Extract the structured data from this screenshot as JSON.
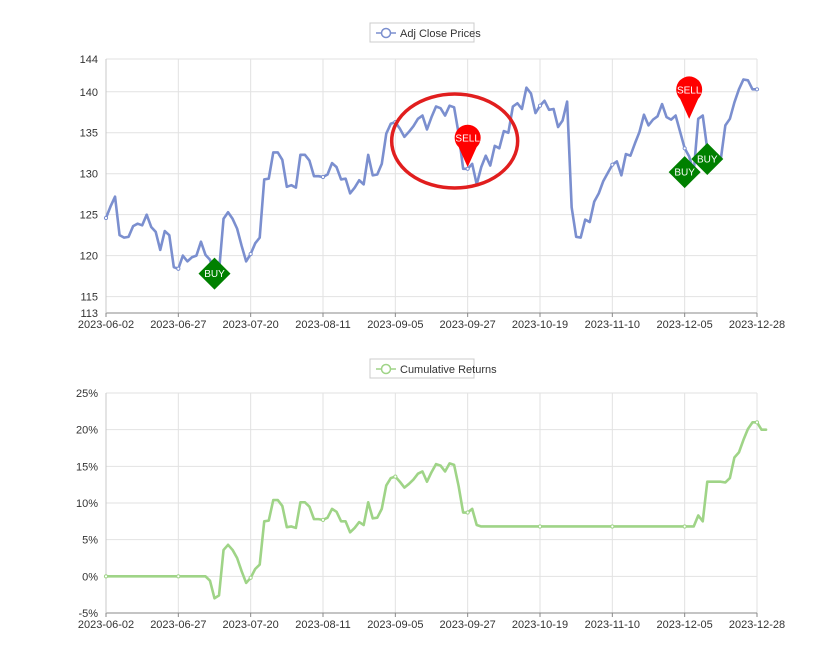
{
  "chart_data": [
    {
      "type": "line",
      "legend": "Adj Close Prices",
      "legend_position": "top-center",
      "color": "#7b8fcf",
      "grid": true,
      "x": [
        "2023-06-02",
        "2023-06-05",
        "2023-06-06",
        "2023-06-07",
        "2023-06-08",
        "2023-06-09",
        "2023-06-12",
        "2023-06-13",
        "2023-06-14",
        "2023-06-15",
        "2023-06-16",
        "2023-06-20",
        "2023-06-21",
        "2023-06-22",
        "2023-06-23",
        "2023-06-26",
        "2023-06-27",
        "2023-06-28",
        "2023-06-29",
        "2023-06-30",
        "2023-07-03",
        "2023-07-05",
        "2023-07-06",
        "2023-07-07",
        "2023-07-10",
        "2023-07-11",
        "2023-07-12",
        "2023-07-13",
        "2023-07-14",
        "2023-07-17",
        "2023-07-18",
        "2023-07-19",
        "2023-07-20",
        "2023-07-21",
        "2023-07-24",
        "2023-07-25",
        "2023-07-26",
        "2023-07-27",
        "2023-07-28",
        "2023-07-31",
        "2023-08-01",
        "2023-08-02",
        "2023-08-03",
        "2023-08-04",
        "2023-08-07",
        "2023-08-08",
        "2023-08-09",
        "2023-08-10",
        "2023-08-11",
        "2023-08-14",
        "2023-08-15",
        "2023-08-16",
        "2023-08-17",
        "2023-08-18",
        "2023-08-21",
        "2023-08-22",
        "2023-08-23",
        "2023-08-24",
        "2023-08-25",
        "2023-08-28",
        "2023-08-29",
        "2023-08-30",
        "2023-08-31",
        "2023-09-01",
        "2023-09-05",
        "2023-09-06",
        "2023-09-07",
        "2023-09-08",
        "2023-09-11",
        "2023-09-12",
        "2023-09-13",
        "2023-09-14",
        "2023-09-15",
        "2023-09-18",
        "2023-09-19",
        "2023-09-20",
        "2023-09-21",
        "2023-09-22",
        "2023-09-25",
        "2023-09-26",
        "2023-09-27",
        "2023-09-28",
        "2023-09-29",
        "2023-10-02",
        "2023-10-03",
        "2023-10-04",
        "2023-10-05",
        "2023-10-06",
        "2023-10-09",
        "2023-10-10",
        "2023-10-11",
        "2023-10-12",
        "2023-10-13",
        "2023-10-16",
        "2023-10-17",
        "2023-10-18",
        "2023-10-19",
        "2023-10-20",
        "2023-10-23",
        "2023-10-24",
        "2023-10-25",
        "2023-10-26",
        "2023-10-27",
        "2023-10-30",
        "2023-10-31",
        "2023-11-01",
        "2023-11-02",
        "2023-11-03",
        "2023-11-06",
        "2023-11-07",
        "2023-11-08",
        "2023-11-09",
        "2023-11-10",
        "2023-11-13",
        "2023-11-14",
        "2023-11-15",
        "2023-11-16",
        "2023-11-17",
        "2023-11-20",
        "2023-11-21",
        "2023-11-22",
        "2023-11-24",
        "2023-11-27",
        "2023-11-28",
        "2023-11-29",
        "2023-11-30",
        "2023-12-01",
        "2023-12-04",
        "2023-12-05",
        "2023-12-06",
        "2023-12-07",
        "2023-12-08",
        "2023-12-11",
        "2023-12-12",
        "2023-12-13",
        "2023-12-14",
        "2023-12-15",
        "2023-12-18",
        "2023-12-19",
        "2023-12-20",
        "2023-12-21",
        "2023-12-22",
        "2023-12-26",
        "2023-12-27",
        "2023-12-28"
      ],
      "x_ticks": [
        "2023-06-02",
        "2023-06-27",
        "2023-07-20",
        "2023-08-11",
        "2023-09-05",
        "2023-09-27",
        "2023-10-19",
        "2023-11-10",
        "2023-12-05",
        "2023-12-28"
      ],
      "y_ticks": [
        113,
        115,
        120,
        125,
        130,
        135,
        140,
        144
      ],
      "ylim": [
        113,
        144
      ],
      "values": [
        124.6,
        126.0,
        127.2,
        122.5,
        122.2,
        122.3,
        123.6,
        123.9,
        123.7,
        125.0,
        123.5,
        122.9,
        120.7,
        123.0,
        122.5,
        118.6,
        118.4,
        120.0,
        119.3,
        119.8,
        120.0,
        121.7,
        120.1,
        119.5,
        117.8,
        118.1,
        124.5,
        125.3,
        124.5,
        123.3,
        121.2,
        119.3,
        120.2,
        121.5,
        122.2,
        129.3,
        129.4,
        132.6,
        132.6,
        131.7,
        128.4,
        128.6,
        128.3,
        132.3,
        132.3,
        131.6,
        129.7,
        129.7,
        129.6,
        129.9,
        131.3,
        130.8,
        129.3,
        129.4,
        127.6,
        128.3,
        129.2,
        128.7,
        132.3,
        129.8,
        129.9,
        131.2,
        134.9,
        136.1,
        136.3,
        135.5,
        134.5,
        135.1,
        135.8,
        136.7,
        137.1,
        135.4,
        136.9,
        138.2,
        138.0,
        137.1,
        138.3,
        138.1,
        134.9,
        130.6,
        130.6,
        131.2,
        128.7,
        130.8,
        132.2,
        131.0,
        133.4,
        133.1,
        135.2,
        135.0,
        138.2,
        138.6,
        137.9,
        140.5,
        139.8,
        137.4,
        138.3,
        138.9,
        137.8,
        137.9,
        135.7,
        136.5,
        138.8,
        125.9,
        122.3,
        122.2,
        124.4,
        124.1,
        126.6,
        127.6,
        129.1,
        130.1,
        131.1,
        131.5,
        129.8,
        132.4,
        132.2,
        133.7,
        135.1,
        137.2,
        135.9,
        136.6,
        137.0,
        138.5,
        136.9,
        136.6,
        137.1,
        135.1,
        133.1,
        132.1,
        130.2,
        136.7,
        137.1,
        133.0,
        132.3,
        132.3,
        131.8,
        135.9,
        136.7,
        138.7,
        140.3,
        141.5,
        141.4,
        140.3,
        140.3
      ],
      "annotations": [
        {
          "type": "BUY",
          "x": "2023-07-10",
          "y": 117.8,
          "color": "#008000"
        },
        {
          "type": "SELL",
          "x": "2023-09-27",
          "y": 130.8,
          "color": "#ff0000"
        },
        {
          "type": "BUY",
          "x": "2023-12-05",
          "y": 130.2,
          "color": "#008000"
        },
        {
          "type": "SELL",
          "x": "2023-12-06",
          "y": 136.7,
          "color": "#ff0000"
        },
        {
          "type": "BUY",
          "x": "2023-12-12",
          "y": 131.8,
          "color": "#008000"
        }
      ],
      "callouts": [
        {
          "shape": "ellipse",
          "around": "2023-09-27",
          "color": "#e11e1e"
        }
      ]
    },
    {
      "type": "line",
      "legend": "Cumulative Returns",
      "legend_position": "top-center",
      "color": "#9fd487",
      "grid": true,
      "unit": "%",
      "x_ticks": [
        "2023-06-02",
        "2023-06-27",
        "2023-07-20",
        "2023-08-11",
        "2023-09-05",
        "2023-09-27",
        "2023-10-19",
        "2023-11-10",
        "2023-12-05",
        "2023-12-28"
      ],
      "y_ticks": [
        -5,
        0,
        5,
        10,
        15,
        20,
        25
      ],
      "ylim": [
        -5,
        25
      ],
      "values": [
        0,
        0,
        0,
        0,
        0,
        0,
        0,
        0,
        0,
        0,
        0,
        0,
        0,
        0,
        0,
        0,
        0,
        0,
        0,
        0,
        0,
        0,
        0,
        -0.6,
        -3.0,
        -2.6,
        3.6,
        4.3,
        3.6,
        2.5,
        0.7,
        -0.9,
        -0.2,
        1.0,
        1.6,
        7.5,
        7.6,
        10.4,
        10.4,
        9.6,
        6.7,
        6.8,
        6.6,
        10.1,
        10.1,
        9.5,
        7.8,
        7.8,
        7.7,
        8.0,
        9.2,
        8.8,
        7.5,
        7.5,
        6.0,
        6.6,
        7.4,
        7.0,
        10.1,
        7.9,
        8.0,
        9.2,
        12.4,
        13.4,
        13.6,
        12.9,
        12.1,
        12.6,
        13.2,
        14.0,
        14.3,
        12.9,
        14.2,
        15.3,
        15.1,
        14.3,
        15.4,
        15.2,
        12.3,
        8.7,
        8.7,
        9.2,
        7.0,
        6.8,
        6.8,
        6.8,
        6.8,
        6.8,
        6.8,
        6.8,
        6.8,
        6.8,
        6.8,
        6.8,
        6.8,
        6.8,
        6.8,
        6.8,
        6.8,
        6.8,
        6.8,
        6.8,
        6.8,
        6.8,
        6.8,
        6.8,
        6.8,
        6.8,
        6.8,
        6.8,
        6.8,
        6.8,
        6.8,
        6.8,
        6.8,
        6.8,
        6.8,
        6.8,
        6.8,
        6.8,
        6.8,
        6.8,
        6.8,
        6.8,
        6.8,
        6.8,
        6.8,
        6.8,
        6.8,
        6.8,
        6.8,
        8.3,
        7.5,
        12.9,
        12.9,
        12.9,
        12.9,
        12.8,
        13.4,
        16.2,
        16.9,
        18.6,
        20.1,
        21.0,
        21.0,
        20.0,
        20.0
      ]
    }
  ]
}
